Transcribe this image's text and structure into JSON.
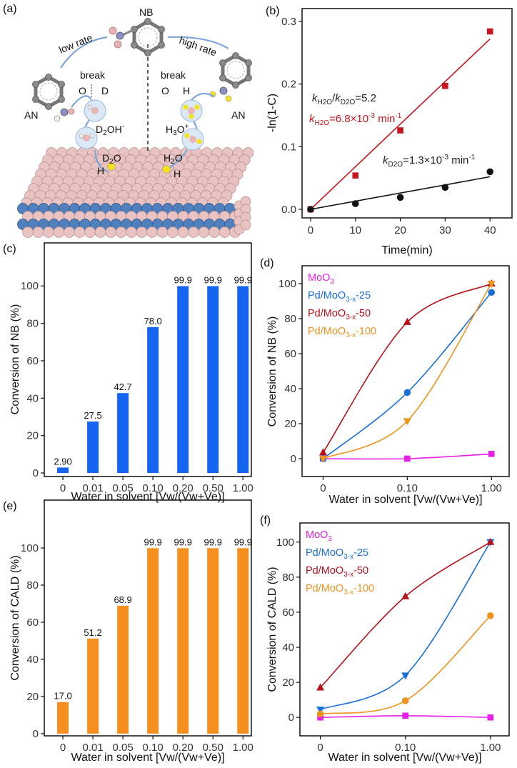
{
  "panel_a": {
    "label": "(a)",
    "nb": "NB",
    "low_rate": "low rate",
    "high_rate": "high rate",
    "an_left": "AN",
    "an_right": "AN",
    "break_left": "break",
    "break_right": "break",
    "o_left": "O",
    "d_left": "D",
    "o_right": "O",
    "h_right": "H",
    "d2oh": {
      "base": "D",
      "sub": "2",
      "rest": "OH",
      "sup": "-"
    },
    "h3o": {
      "base": "H",
      "sub": "3",
      "rest": "O",
      "sup": "+"
    },
    "d2o": {
      "base": "D",
      "sub": "2",
      "rest": "O"
    },
    "h2o": {
      "base": "H",
      "sub": "2",
      "rest": "O"
    },
    "h_surface_left": "H",
    "h_surface_right": "H"
  },
  "colors": {
    "red": "#c8141e",
    "black": "#111111",
    "blue_bar": "#1565f0",
    "orange_bar": "#f5901e",
    "moo3": "#e61ee6",
    "pd25": "#1a6fd8",
    "pd50": "#b8101c",
    "pd100": "#f0921e"
  },
  "chart_data": [
    {
      "panel": "(b)",
      "type": "scatter",
      "xlabel": "Time(min)",
      "ylabel": "-ln(1-C)",
      "xlim": [
        -1.9,
        44.9
      ],
      "ylim": [
        -0.0137,
        0.3205
      ],
      "xticks": [
        0,
        10,
        20,
        30,
        40
      ],
      "xtick_labels": [
        "0",
        "10",
        "20",
        "30",
        "40"
      ],
      "yticks": [
        0.0,
        0.1,
        0.2,
        0.3
      ],
      "ytick_labels": [
        "0.0",
        "0.1",
        "0.2",
        "0.3"
      ],
      "series": [
        {
          "name": "H2O",
          "color": "#c8141e",
          "marker": "square",
          "x": [
            0,
            10,
            20,
            30,
            40
          ],
          "y": [
            0.0,
            0.054,
            0.126,
            0.197,
            0.284
          ],
          "fit_slope": 0.0068
        },
        {
          "name": "D2O",
          "color": "#111111",
          "marker": "circle",
          "x": [
            0,
            10,
            20,
            30,
            40
          ],
          "y": [
            0.0,
            0.009,
            0.019,
            0.035,
            0.06
          ],
          "fit_slope": 0.0013
        }
      ],
      "annotations": {
        "ratio": {
          "k1": "k",
          "s1": "H2O",
          "slash": "/",
          "k2": "k",
          "s2": "D2O",
          "rest": "=5.2"
        },
        "h2o": {
          "k": "k",
          "s": "H2O",
          "rest": "=6.8×10",
          "sup": "-3",
          "unit": " min",
          "usup": "-1"
        },
        "d2o": {
          "k": "k",
          "s": "D2O",
          "rest": "=1.3×10",
          "sup": "-3",
          "unit": " min",
          "usup": "-1"
        }
      }
    },
    {
      "panel": "(c)",
      "type": "bar",
      "xlabel": "Water in solvent [Vw/(Vw+Ve)]",
      "ylabel": "Conversion of NB (%)",
      "categories": [
        "0",
        "0.01",
        "0.05",
        "0.10",
        "0.20",
        "0.50",
        "1.00"
      ],
      "values": [
        2.9,
        27.5,
        42.7,
        78.0,
        99.9,
        99.9,
        99.9
      ],
      "value_labels": [
        "2.90",
        "27.5",
        "42.7",
        "78.0",
        "99.9",
        "99.9",
        "99.9"
      ],
      "ylim": [
        -1.9,
        123
      ],
      "yticks": [
        0,
        20,
        40,
        60,
        80,
        100
      ],
      "ytick_labels": [
        "0",
        "20",
        "40",
        "60",
        "80",
        "100"
      ],
      "color": "#1565f0"
    },
    {
      "panel": "(d)",
      "type": "line",
      "xlabel": "Water in solvent [Vw/(Vw+Ve)]",
      "ylabel": "Conversion of NB (%)",
      "categories": [
        "0",
        "0.10",
        "1.00"
      ],
      "xlim": [
        -0.25,
        2.21
      ],
      "ylim": [
        -10.2,
        110.2
      ],
      "yticks": [
        0,
        20,
        40,
        60,
        80,
        100
      ],
      "ytick_labels": [
        "0",
        "20",
        "40",
        "60",
        "80",
        "100"
      ],
      "legend_position": "top-left",
      "series": [
        {
          "name": {
            "base": "MoO",
            "sub": "3",
            "suffix": ""
          },
          "color": "#e61ee6",
          "marker": "square",
          "values": [
            0,
            0,
            2.7
          ]
        },
        {
          "name": {
            "base": "Pd/MoO",
            "sub": "3-x",
            "suffix": "-25"
          },
          "color": "#1a6fd8",
          "marker": "circle",
          "values": [
            0,
            37.8,
            95
          ]
        },
        {
          "name": {
            "base": "Pd/MoO",
            "sub": "3-x",
            "suffix": "-50"
          },
          "color": "#b8101c",
          "marker": "triangle-up",
          "values": [
            3.5,
            78,
            100
          ]
        },
        {
          "name": {
            "base": "Pd/MoO",
            "sub": "3-x",
            "suffix": "-100"
          },
          "color": "#f0921e",
          "marker": "triangle-down",
          "values": [
            0,
            21.5,
            100
          ]
        }
      ]
    },
    {
      "panel": "(e)",
      "type": "bar",
      "xlabel": "Water in solvent [Vw/(Vw+Ve)]",
      "ylabel": "Conversion of CALD (%)",
      "categories": [
        "0",
        "0.01",
        "0.05",
        "0.10",
        "0.20",
        "0.50",
        "1.00"
      ],
      "values": [
        17.0,
        51.2,
        68.9,
        99.9,
        99.9,
        99.9,
        99.9
      ],
      "value_labels": [
        "17.0",
        "51.2",
        "68.9",
        "99.9",
        "99.9",
        "99.9",
        "99.9"
      ],
      "ylim": [
        -1.2,
        125.8
      ],
      "yticks": [
        0,
        20,
        40,
        60,
        80,
        100
      ],
      "ytick_labels": [
        "0",
        "20",
        "40",
        "60",
        "80",
        "100"
      ],
      "color": "#f5901e"
    },
    {
      "panel": "(f)",
      "type": "line",
      "xlabel": "Water in solvent [Vw/(Vw+Ve)]",
      "ylabel": "Conversion of CALD (%)",
      "categories": [
        "0",
        "0.10",
        "1.00"
      ],
      "xlim": [
        -0.24,
        2.22
      ],
      "ylim": [
        -10.5,
        110.9
      ],
      "yticks": [
        0,
        20,
        40,
        60,
        80,
        100
      ],
      "ytick_labels": [
        "0",
        "20",
        "40",
        "60",
        "80",
        "100"
      ],
      "legend_position": "top-left",
      "series": [
        {
          "name": {
            "base": "MoO",
            "sub": "3",
            "suffix": ""
          },
          "color": "#e61ee6",
          "marker": "square",
          "values": [
            0,
            1,
            0
          ]
        },
        {
          "name": {
            "base": "Pd/MoO",
            "sub": "3-x",
            "suffix": "-25"
          },
          "color": "#1a6fd8",
          "marker": "triangle-down",
          "values": [
            4.5,
            24,
            100
          ]
        },
        {
          "name": {
            "base": "Pd/MoO",
            "sub": "3-x",
            "suffix": "-50"
          },
          "color": "#b8101c",
          "marker": "triangle-up",
          "values": [
            17,
            69,
            100
          ]
        },
        {
          "name": {
            "base": "Pd/MoO",
            "sub": "3-x",
            "suffix": "-100"
          },
          "color": "#f0921e",
          "marker": "circle",
          "values": [
            2,
            9.5,
            58
          ]
        }
      ]
    }
  ]
}
